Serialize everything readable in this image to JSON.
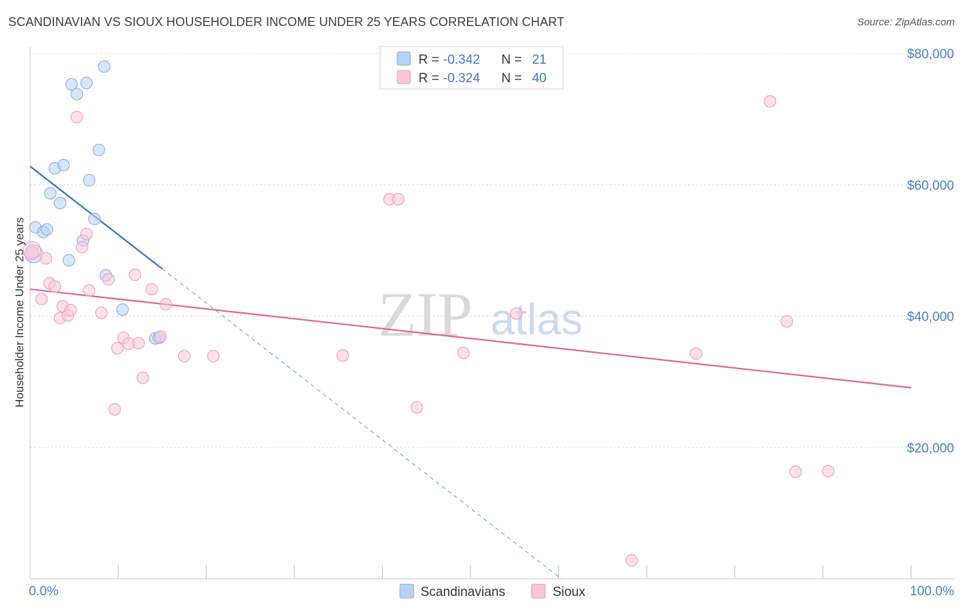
{
  "chart_data": {
    "type": "scatter",
    "title": "SCANDINAVIAN VS SIOUX HOUSEHOLDER INCOME UNDER 25 YEARS CORRELATION CHART",
    "source": "Source: ZipAtlas.com",
    "xlabel": "",
    "ylabel": "Householder Income Under 25 years",
    "xlim": [
      0,
      100
    ],
    "ylim": [
      0,
      80000
    ],
    "x_tick_labels": {
      "min": "0.0%",
      "max": "100.0%"
    },
    "y_ticks": [
      {
        "value": 20000,
        "label": "$20,000"
      },
      {
        "value": 40000,
        "label": "$40,000"
      },
      {
        "value": 60000,
        "label": "$60,000"
      },
      {
        "value": 80000,
        "label": "$80,000"
      }
    ],
    "grid": true,
    "legend_position": "top-center",
    "watermark": {
      "zip": "ZIP",
      "atlas": "atlas"
    },
    "stats": [
      {
        "series": "Scandinavians",
        "r_label": "R =",
        "r_value": "-0.342",
        "n_label": "N =",
        "n_value": "21"
      },
      {
        "series": "Sioux",
        "r_label": "R =",
        "r_value": "-0.324",
        "n_label": "N =",
        "n_value": "40"
      }
    ],
    "series": [
      {
        "name": "Scandinavians",
        "color": "#8cb4e8",
        "fill": "#b8d2f2",
        "line_color": "#2f72c9",
        "trend": {
          "x0": 0,
          "y0": 62800,
          "x1": 15,
          "y1": 47200,
          "dash_to_x": 60.3,
          "dash_to_y": 0
        },
        "points": [
          [
            0.6,
            53500
          ],
          [
            1.5,
            52800
          ],
          [
            1.9,
            53200
          ],
          [
            2.3,
            58700
          ],
          [
            2.8,
            62500
          ],
          [
            3.4,
            57200
          ],
          [
            3.8,
            63000
          ],
          [
            4.4,
            48500
          ],
          [
            4.7,
            75300
          ],
          [
            5.3,
            73800
          ],
          [
            6.0,
            51500
          ],
          [
            6.4,
            75500
          ],
          [
            6.7,
            60700
          ],
          [
            7.3,
            54800
          ],
          [
            7.8,
            65300
          ],
          [
            8.4,
            78000
          ],
          [
            8.6,
            46200
          ],
          [
            10.5,
            41000
          ],
          [
            14.2,
            36600
          ],
          [
            14.6,
            36700
          ],
          [
            0.4,
            49500
          ]
        ]
      },
      {
        "name": "Sioux",
        "color": "#f0a3bd",
        "fill": "#f8c8d8",
        "line_color": "#e0658e",
        "trend": {
          "x0": 0,
          "y0": 44100,
          "x1": 100,
          "y1": 29100
        },
        "points": [
          [
            0.3,
            49700
          ],
          [
            1.3,
            42600
          ],
          [
            1.8,
            48800
          ],
          [
            2.2,
            45000
          ],
          [
            2.8,
            44500
          ],
          [
            3.4,
            39700
          ],
          [
            3.7,
            41500
          ],
          [
            4.3,
            40100
          ],
          [
            4.6,
            40900
          ],
          [
            5.3,
            70300
          ],
          [
            5.9,
            50500
          ],
          [
            6.4,
            52500
          ],
          [
            6.7,
            43900
          ],
          [
            8.1,
            40500
          ],
          [
            8.9,
            45600
          ],
          [
            9.6,
            25800
          ],
          [
            9.9,
            35100
          ],
          [
            10.6,
            36700
          ],
          [
            11.2,
            35800
          ],
          [
            11.9,
            46300
          ],
          [
            12.3,
            35900
          ],
          [
            12.8,
            30600
          ],
          [
            13.8,
            44100
          ],
          [
            14.8,
            36900
          ],
          [
            15.4,
            41800
          ],
          [
            17.5,
            33900
          ],
          [
            20.8,
            33900
          ],
          [
            35.5,
            34000
          ],
          [
            40.8,
            57800
          ],
          [
            41.8,
            57800
          ],
          [
            43.9,
            26100
          ],
          [
            49.2,
            34400
          ],
          [
            55.2,
            40400
          ],
          [
            68.3,
            2800
          ],
          [
            75.6,
            34300
          ],
          [
            84.0,
            72700
          ],
          [
            85.9,
            39200
          ],
          [
            86.9,
            16300
          ],
          [
            90.6,
            16400
          ],
          [
            0.2,
            50000
          ]
        ]
      }
    ]
  }
}
